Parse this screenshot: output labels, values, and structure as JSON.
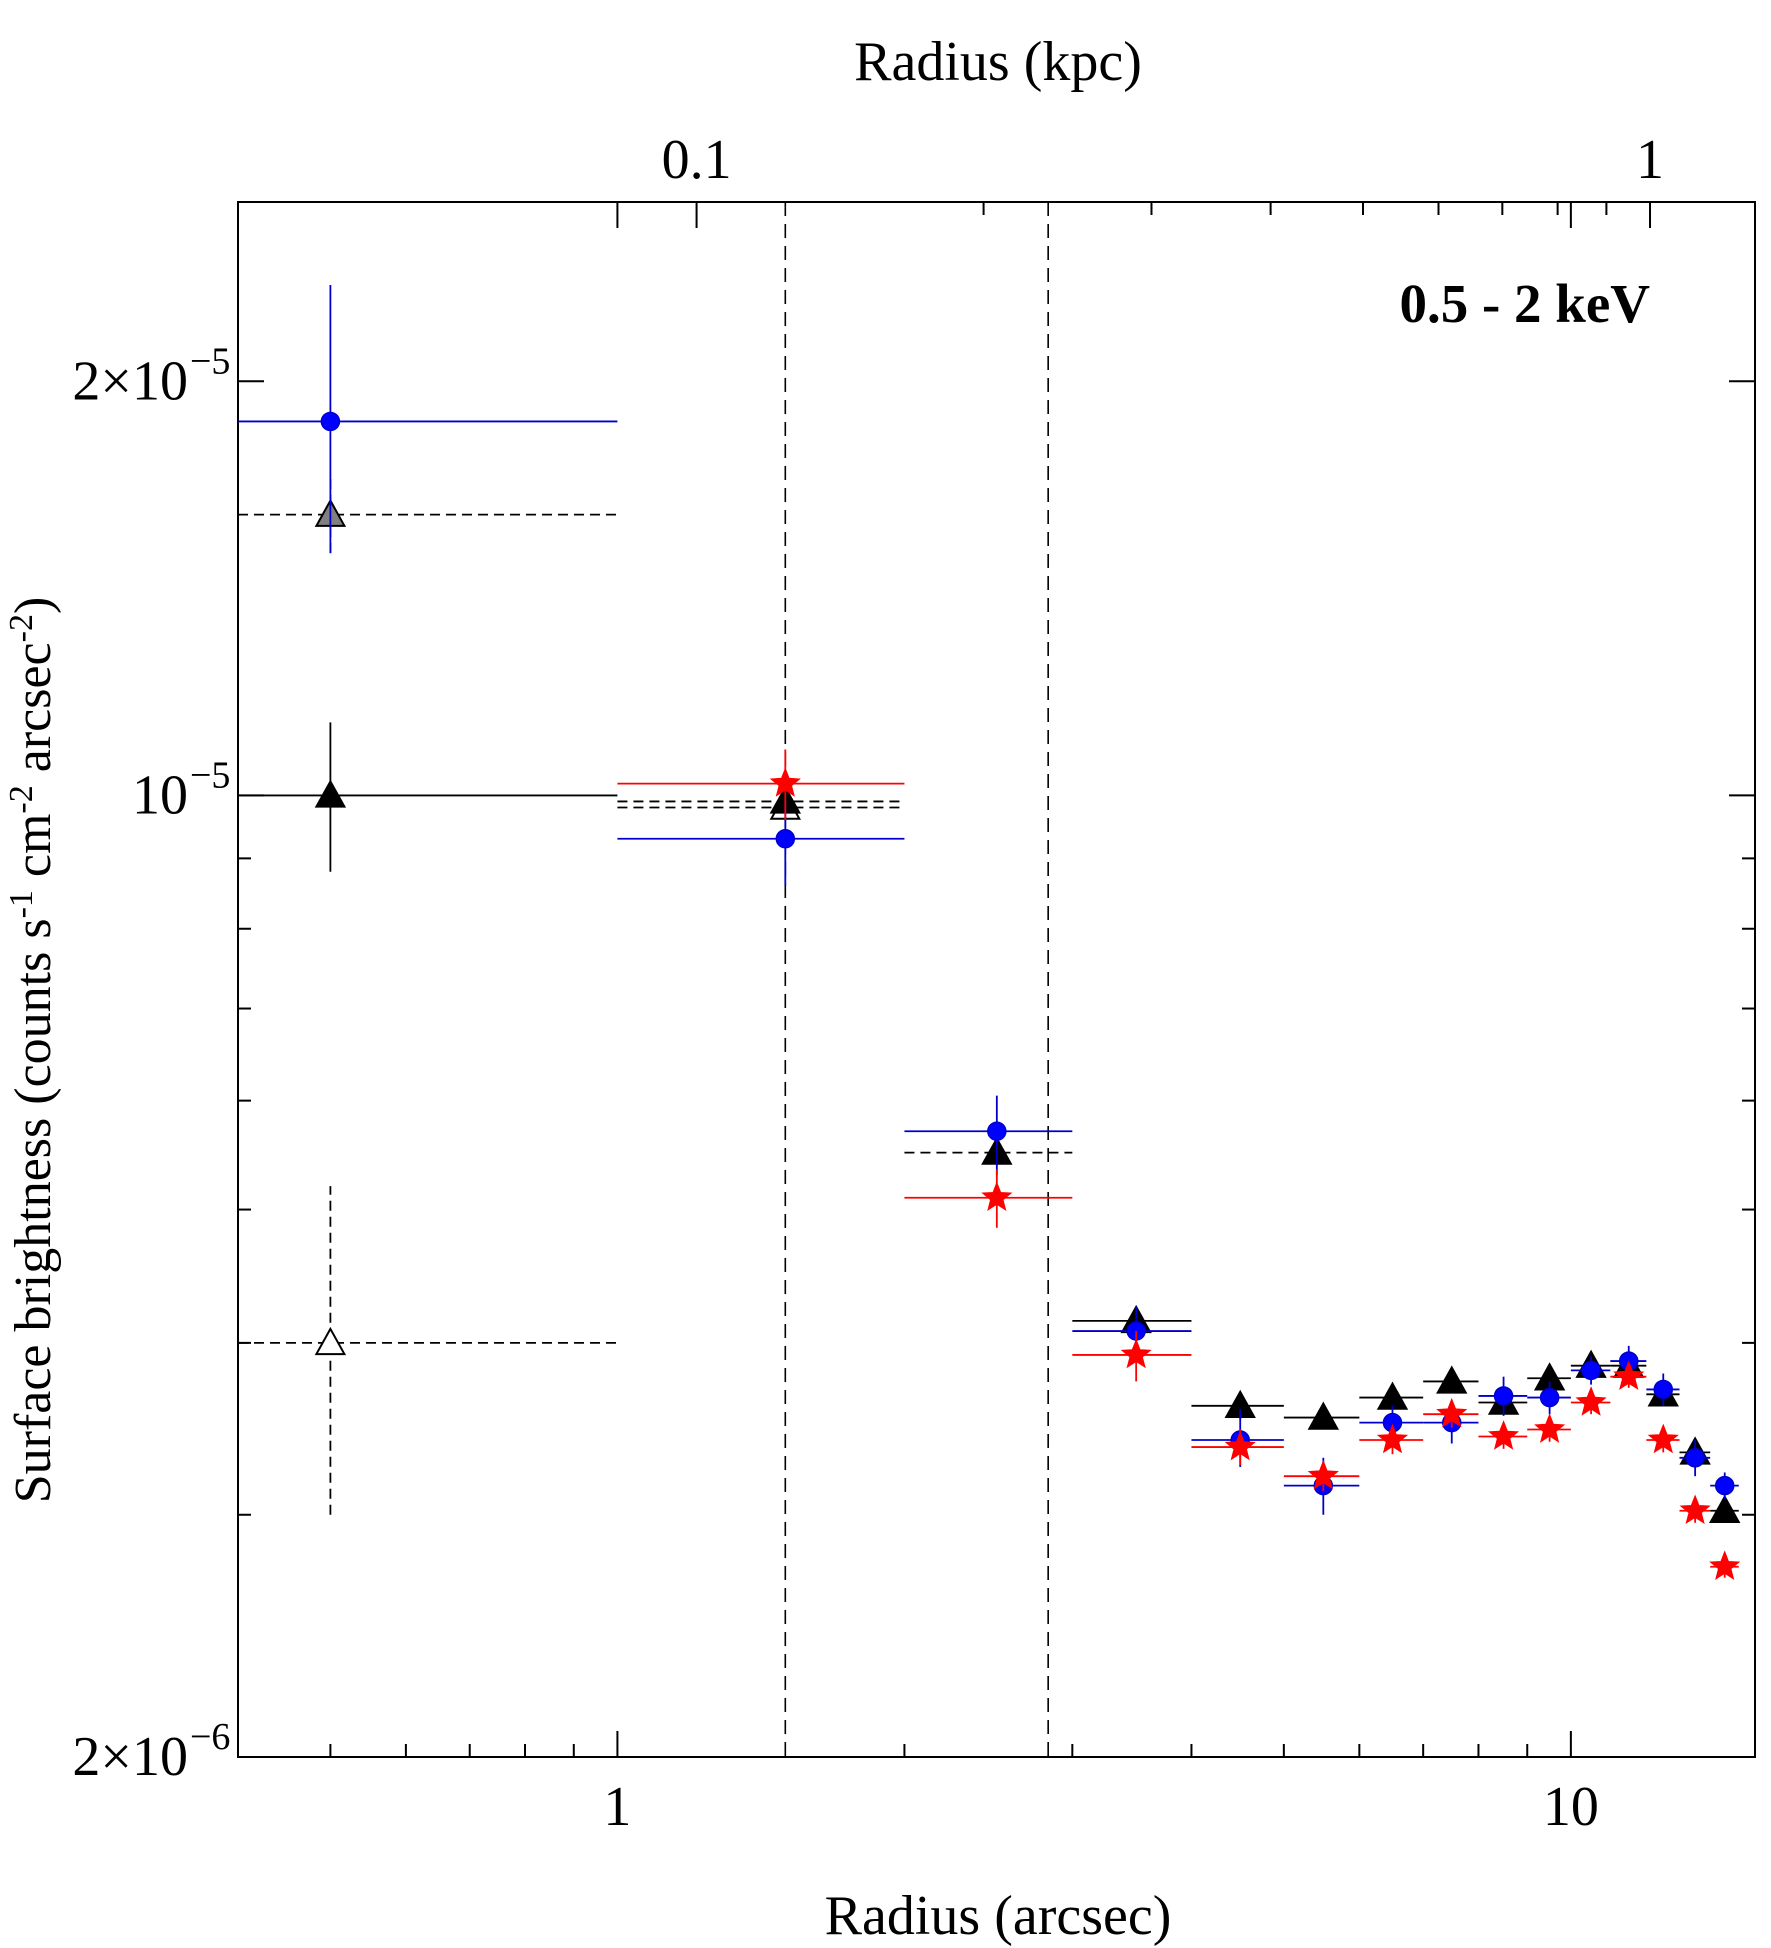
{
  "chart_data": {
    "type": "scatter",
    "annotation": "0.5 - 2 keV",
    "xlabel": "Radius (arcsec)",
    "x2label": "Radius (kpc)",
    "ylabel": "Surface brightness (counts s",
    "ylabel_parts": [
      "Surface brightness (counts s",
      "-1",
      " cm",
      "-2",
      " arcsec",
      "-2",
      ")"
    ],
    "xscale": "log",
    "yscale": "log",
    "xlim": [
      0.4,
      15.6
    ],
    "ylim": [
      2e-06,
      2.7e-05
    ],
    "x_ticks": [
      {
        "value": 1,
        "label": "1"
      },
      {
        "value": 10,
        "label": "10"
      }
    ],
    "x2_ticks": [
      {
        "value": 0.1,
        "label": "0.1"
      },
      {
        "value": 1,
        "label": "1"
      }
    ],
    "x2_per_x": 0.0826,
    "y_ticks": [
      {
        "value": 2e-06,
        "mantissa": "2×10",
        "exp": "−6"
      },
      {
        "value": 1e-05,
        "mantissa": "10",
        "exp": "−5"
      },
      {
        "value": 2e-05,
        "mantissa": "2×10",
        "exp": "−5"
      }
    ],
    "vlines": [
      1.5,
      2.83
    ],
    "series": [
      {
        "marker": "triangle",
        "color": "#000000",
        "fill": "#000000",
        "line": "solid",
        "points": [
          {
            "x": 0.5,
            "xlo": 0.4,
            "xhi": 1.0,
            "y": 1e-05,
            "ylo": 8.8e-06,
            "yhi": 1.13e-05
          }
        ]
      },
      {
        "marker": "triangle",
        "color": "#000000",
        "fill": "#808080",
        "line": "dashed",
        "points": [
          {
            "x": 0.5,
            "xlo": 0.4,
            "xhi": 1.0,
            "y": 1.6e-05,
            "ylo": 1.5e-05,
            "yhi": 1.7e-05
          }
        ]
      },
      {
        "marker": "triangle",
        "color": "#000000",
        "fill": "#ffffff",
        "line": "dashed",
        "points": [
          {
            "x": 0.5,
            "xlo": 0.4,
            "xhi": 1.0,
            "y": 4e-06,
            "ylo": 3e-06,
            "yhi": 5.2e-06
          },
          {
            "x": 1.5,
            "xlo": 1.0,
            "xhi": 2.0,
            "y": 9.8e-06,
            "ylo": 9.6e-06,
            "yhi": 1e-05
          }
        ]
      },
      {
        "marker": "triangle",
        "color": "#000000",
        "fill": "#000000",
        "line": "dashed",
        "points": [
          {
            "x": 1.5,
            "xlo": 1.0,
            "xhi": 2.0,
            "y": 9.9e-06,
            "ylo": 9.7e-06,
            "yhi": 1.01e-05
          },
          {
            "x": 2.5,
            "xlo": 2.0,
            "xhi": 3.0,
            "y": 5.5e-06,
            "ylo": 5.4e-06,
            "yhi": 5.6e-06
          }
        ]
      },
      {
        "marker": "triangle",
        "color": "#000000",
        "fill": "#000000",
        "line": "solid",
        "points": [
          {
            "x": 3.5,
            "xlo": 3.0,
            "xhi": 4.0,
            "y": 4.15e-06,
            "ylo": 4.05e-06,
            "yhi": 4.25e-06
          },
          {
            "x": 4.5,
            "xlo": 4.0,
            "xhi": 5.0,
            "y": 3.6e-06,
            "ylo": 3.52e-06,
            "yhi": 3.68e-06
          },
          {
            "x": 5.5,
            "xlo": 5.0,
            "xhi": 6.0,
            "y": 3.53e-06,
            "ylo": 3.47e-06,
            "yhi": 3.6e-06
          },
          {
            "x": 6.5,
            "xlo": 6.0,
            "xhi": 7.0,
            "y": 3.65e-06,
            "ylo": 3.58e-06,
            "yhi": 3.72e-06
          },
          {
            "x": 7.5,
            "xlo": 7.0,
            "xhi": 8.0,
            "y": 3.75e-06,
            "ylo": 3.68e-06,
            "yhi": 3.82e-06
          },
          {
            "x": 8.5,
            "xlo": 8.0,
            "xhi": 9.0,
            "y": 3.62e-06,
            "ylo": 3.56e-06,
            "yhi": 3.68e-06
          },
          {
            "x": 9.5,
            "xlo": 9.0,
            "xhi": 10.0,
            "y": 3.77e-06,
            "ylo": 3.7e-06,
            "yhi": 3.84e-06
          },
          {
            "x": 10.5,
            "xlo": 10.0,
            "xhi": 11.0,
            "y": 3.85e-06,
            "ylo": 3.78e-06,
            "yhi": 3.92e-06
          },
          {
            "x": 11.5,
            "xlo": 11.0,
            "xhi": 12.0,
            "y": 3.85e-06,
            "ylo": 3.78e-06,
            "yhi": 3.92e-06
          },
          {
            "x": 12.5,
            "xlo": 12.0,
            "xhi": 13.0,
            "y": 3.67e-06,
            "ylo": 3.6e-06,
            "yhi": 3.74e-06
          },
          {
            "x": 13.5,
            "xlo": 13.0,
            "xhi": 14.0,
            "y": 3.33e-06,
            "ylo": 3.27e-06,
            "yhi": 3.39e-06
          },
          {
            "x": 14.5,
            "xlo": 14.0,
            "xhi": 15.0,
            "y": 3.02e-06,
            "ylo": 2.96e-06,
            "yhi": 3.08e-06
          }
        ]
      },
      {
        "marker": "circle",
        "color": "#0000cc",
        "fill": "#0000ff",
        "line": "solid",
        "points": [
          {
            "x": 0.5,
            "xlo": 0.4,
            "xhi": 1.0,
            "y": 1.87e-05,
            "ylo": 1.5e-05,
            "yhi": 2.35e-05
          },
          {
            "x": 1.5,
            "xlo": 1.0,
            "xhi": 2.0,
            "y": 9.3e-06,
            "ylo": 8.6e-06,
            "yhi": 9.9e-06
          },
          {
            "x": 2.5,
            "xlo": 2.0,
            "xhi": 3.0,
            "y": 5.7e-06,
            "ylo": 5.3e-06,
            "yhi": 6.05e-06
          },
          {
            "x": 3.5,
            "xlo": 3.0,
            "xhi": 4.0,
            "y": 4.08e-06,
            "ylo": 3.9e-06,
            "yhi": 4.25e-06
          },
          {
            "x": 4.5,
            "xlo": 4.0,
            "xhi": 5.0,
            "y": 3.4e-06,
            "ylo": 3.25e-06,
            "yhi": 3.58e-06
          },
          {
            "x": 5.5,
            "xlo": 5.0,
            "xhi": 6.0,
            "y": 3.15e-06,
            "ylo": 3e-06,
            "yhi": 3.3e-06
          },
          {
            "x": 6.5,
            "xlo": 6.0,
            "xhi": 7.0,
            "y": 3.5e-06,
            "ylo": 3.4e-06,
            "yhi": 3.6e-06
          },
          {
            "x": 7.5,
            "xlo": 7.0,
            "xhi": 8.0,
            "y": 3.5e-06,
            "ylo": 3.38e-06,
            "yhi": 3.62e-06
          },
          {
            "x": 8.5,
            "xlo": 8.0,
            "xhi": 9.0,
            "y": 3.66e-06,
            "ylo": 3.54e-06,
            "yhi": 3.78e-06
          },
          {
            "x": 9.5,
            "xlo": 9.0,
            "xhi": 10.0,
            "y": 3.65e-06,
            "ylo": 3.55e-06,
            "yhi": 3.75e-06
          },
          {
            "x": 10.5,
            "xlo": 10.0,
            "xhi": 11.0,
            "y": 3.82e-06,
            "ylo": 3.73e-06,
            "yhi": 3.91e-06
          },
          {
            "x": 11.5,
            "xlo": 11.0,
            "xhi": 12.0,
            "y": 3.88e-06,
            "ylo": 3.78e-06,
            "yhi": 3.98e-06
          },
          {
            "x": 12.5,
            "xlo": 12.0,
            "xhi": 13.0,
            "y": 3.7e-06,
            "ylo": 3.6e-06,
            "yhi": 3.8e-06
          },
          {
            "x": 13.5,
            "xlo": 13.0,
            "xhi": 14.0,
            "y": 3.3e-06,
            "ylo": 3.2e-06,
            "yhi": 3.4e-06
          },
          {
            "x": 14.5,
            "xlo": 14.0,
            "xhi": 15.0,
            "y": 3.15e-06,
            "ylo": 3.08e-06,
            "yhi": 3.22e-06
          }
        ]
      },
      {
        "marker": "star",
        "color": "#ff0000",
        "fill": "#ff0000",
        "line": "solid",
        "points": [
          {
            "x": 1.5,
            "xlo": 1.0,
            "xhi": 2.0,
            "y": 1.02e-05,
            "ylo": 9.6e-06,
            "yhi": 1.08e-05
          },
          {
            "x": 2.5,
            "xlo": 2.0,
            "xhi": 3.0,
            "y": 5.1e-06,
            "ylo": 4.85e-06,
            "yhi": 5.35e-06
          },
          {
            "x": 3.5,
            "xlo": 3.0,
            "xhi": 4.0,
            "y": 3.92e-06,
            "ylo": 3.75e-06,
            "yhi": 4.08e-06
          },
          {
            "x": 4.5,
            "xlo": 4.0,
            "xhi": 5.0,
            "y": 3.36e-06,
            "ylo": 3.26e-06,
            "yhi": 3.46e-06
          },
          {
            "x": 5.5,
            "xlo": 5.0,
            "xhi": 6.0,
            "y": 3.2e-06,
            "ylo": 3.12e-06,
            "yhi": 3.28e-06
          },
          {
            "x": 6.5,
            "xlo": 6.0,
            "xhi": 7.0,
            "y": 3.4e-06,
            "ylo": 3.32e-06,
            "yhi": 3.48e-06
          },
          {
            "x": 7.5,
            "xlo": 7.0,
            "xhi": 8.0,
            "y": 3.55e-06,
            "ylo": 3.47e-06,
            "yhi": 3.63e-06
          },
          {
            "x": 8.5,
            "xlo": 8.0,
            "xhi": 9.0,
            "y": 3.42e-06,
            "ylo": 3.35e-06,
            "yhi": 3.49e-06
          },
          {
            "x": 9.5,
            "xlo": 9.0,
            "xhi": 10.0,
            "y": 3.46e-06,
            "ylo": 3.39e-06,
            "yhi": 3.53e-06
          },
          {
            "x": 10.5,
            "xlo": 10.0,
            "xhi": 11.0,
            "y": 3.62e-06,
            "ylo": 3.55e-06,
            "yhi": 3.69e-06
          },
          {
            "x": 11.5,
            "xlo": 11.0,
            "xhi": 12.0,
            "y": 3.78e-06,
            "ylo": 3.71e-06,
            "yhi": 3.85e-06
          },
          {
            "x": 12.5,
            "xlo": 12.0,
            "xhi": 13.0,
            "y": 3.4e-06,
            "ylo": 3.33e-06,
            "yhi": 3.47e-06
          },
          {
            "x": 13.5,
            "xlo": 13.0,
            "xhi": 14.0,
            "y": 3.02e-06,
            "ylo": 2.96e-06,
            "yhi": 3.08e-06
          },
          {
            "x": 14.5,
            "xlo": 14.0,
            "xhi": 15.0,
            "y": 2.75e-06,
            "ylo": 2.7e-06,
            "yhi": 2.8e-06
          }
        ]
      }
    ]
  }
}
